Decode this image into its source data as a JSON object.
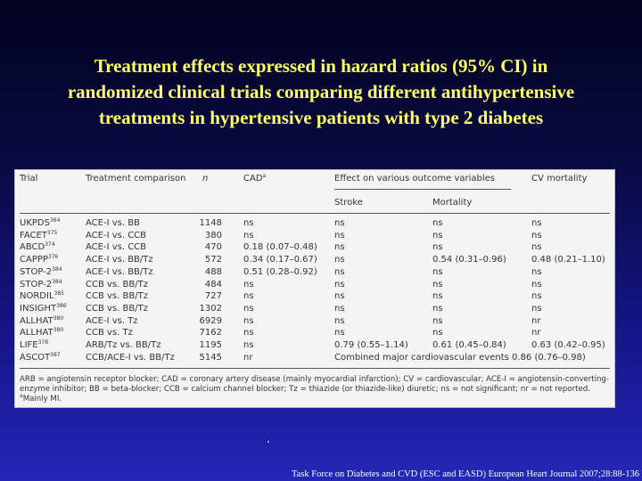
{
  "title": {
    "line1": "Treatment effects expressed in hazard ratios  (95% CI) in",
    "line2": "randomized clinical trials comparing different antihypertensive",
    "line3": "treatments in hypertensive patients with type 2  diabetes"
  },
  "table": {
    "headers": {
      "trial": "Trial",
      "comparison": "Treatment comparison",
      "n": "n",
      "cad": "CAD",
      "cad_sup": "a",
      "effect": "Effect on various outcome variables",
      "cv": "CV mortality",
      "stroke": "Stroke",
      "mortality": "Mortality"
    },
    "rows": [
      {
        "trial": "UKPDS",
        "sup": "364",
        "comparison": "ACE-I vs. BB",
        "n": "1148",
        "cad": "ns",
        "stroke": "ns",
        "mortality": "ns",
        "cv": "ns"
      },
      {
        "trial": "FACET",
        "sup": "375",
        "comparison": "ACE-I vs. CCB",
        "n": "380",
        "cad": "ns",
        "stroke": "ns",
        "mortality": "ns",
        "cv": "ns"
      },
      {
        "trial": "ABCD",
        "sup": "374",
        "comparison": "ACE-I vs. CCB",
        "n": "470",
        "cad": "0.18 (0.07–0.48)",
        "stroke": "ns",
        "mortality": "ns",
        "cv": "ns"
      },
      {
        "trial": "CAPPP",
        "sup": "376",
        "comparison": "ACE-I vs. BB/Tz",
        "n": "572",
        "cad": "0.34 (0.17–0.67)",
        "stroke": "ns",
        "mortality": "0.54 (0.31–0.96)",
        "cv": "0.48 (0.21–1.10)"
      },
      {
        "trial": "STOP-2",
        "sup": "384",
        "comparison": "ACE-I vs. BB/Tz",
        "n": "488",
        "cad": "0.51 (0.28–0.92)",
        "stroke": "ns",
        "mortality": "ns",
        "cv": "ns"
      },
      {
        "trial": "STOP-2",
        "sup": "384",
        "comparison": "CCB vs. BB/Tz",
        "n": "484",
        "cad": "ns",
        "stroke": "ns",
        "mortality": "ns",
        "cv": "ns"
      },
      {
        "trial": "NORDIL",
        "sup": "385",
        "comparison": "CCB vs. BB/Tz",
        "n": "727",
        "cad": "ns",
        "stroke": "ns",
        "mortality": "ns",
        "cv": "ns"
      },
      {
        "trial": "INSIGHT",
        "sup": "386",
        "comparison": "CCB vs. BB/Tz",
        "n": "1302",
        "cad": "ns",
        "stroke": "ns",
        "mortality": "ns",
        "cv": "ns"
      },
      {
        "trial": "ALLHAT",
        "sup": "380",
        "comparison": "ACE-I vs. Tz",
        "n": "6929",
        "cad": "ns",
        "stroke": "ns",
        "mortality": "ns",
        "cv": "nr"
      },
      {
        "trial": "ALLHAT",
        "sup": "380",
        "comparison": "CCB vs. Tz",
        "n": "7162",
        "cad": "ns",
        "stroke": "ns",
        "mortality": "ns",
        "cv": "nr"
      },
      {
        "trial": "LIFE",
        "sup": "378",
        "comparison": "ARB/Tz vs. BB/Tz",
        "n": "1195",
        "cad": "ns",
        "stroke": "0.79 (0.55–1.14)",
        "mortality": "0.61 (0.45–0.84)",
        "cv": "0.63 (0.42–0.95)"
      },
      {
        "trial": "ASCOT",
        "sup": "387",
        "comparison": "CCB/ACE-I vs. BB/Tz",
        "n": "5145",
        "cad": "nr",
        "combined": "Combined major cardiovascular events 0.86 (0.76–0.98)"
      }
    ],
    "footnote": {
      "line1": "ARB = angiotensin receptor blocker; CAD = coronary artery disease (mainly myocardial infarction); CV = cardiovascular; ACE-I = angiotensin-converting-",
      "line2": "enzyme inhibitor; BB = beta-blocker; CCB = calcium channel blocker; Tz = thiazide (or thiazide-like) diuretic; ns = not significant; nr = not reported.",
      "line3_sup": "a",
      "line3": "Mainly MI."
    }
  },
  "source": "Task Force on Diabetes and CVD (ESC and EASD) European Heart Journal 2007;28:88-136"
}
